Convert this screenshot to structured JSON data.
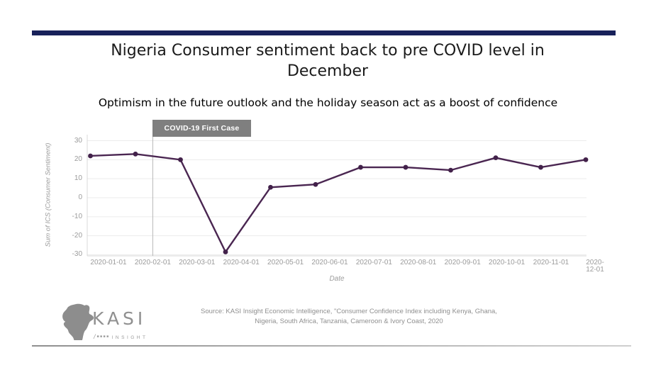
{
  "slide": {
    "title": "Nigeria Consumer sentiment back to pre COVID level in December",
    "subtitle": "Optimism in the future outlook and the holiday season act as a boost of confidence",
    "accent_bar_color": "#18215a"
  },
  "chart_data": {
    "type": "line",
    "title": "",
    "xlabel": "Date",
    "ylabel": "Sum of ICS (Consumer Sentiment)",
    "x": [
      "2019-12",
      "2020-01",
      "2020-02",
      "2020-03",
      "2020-04",
      "2020-05",
      "2020-06",
      "2020-07",
      "2020-08",
      "2020-09",
      "2020-10",
      "2020-11"
    ],
    "values": [
      22,
      23,
      20,
      -28.5,
      5.5,
      7,
      16,
      16,
      14.5,
      21,
      16,
      20
    ],
    "x_tick_labels": [
      "2020-01-01",
      "2020-02-01",
      "2020-03-01",
      "2020-04-01",
      "2020-05-01",
      "2020-06-01",
      "2020-07-01",
      "2020-08-01",
      "2020-09-01",
      "2020-10-01",
      "2020-11-01",
      "2020-12-01"
    ],
    "y_ticks": [
      30,
      20,
      10,
      0,
      -10,
      -20,
      -30
    ],
    "ylim": [
      -31,
      33
    ],
    "grid": true,
    "legend": "none",
    "line_color": "#4a2651",
    "marker_color": "#42214a",
    "grid_color": "#ebebeb",
    "axis_line_color": "#d9d9d9",
    "annotation": {
      "label": "COVID-19 First Case",
      "x": "2020-02-01",
      "box_color": "#7f7f7f",
      "line_color": "#b8b8b8"
    }
  },
  "footer": {
    "logo_brand": "KASI",
    "logo_sub": "INSIGHT",
    "source_line1": "Source: KASI Insight Economic Intelligence, \"Consumer Confidence Index including Kenya, Ghana,",
    "source_line2": "Nigeria, South Africa, Tanzania, Cameroon & Ivory Coast, 2020"
  }
}
